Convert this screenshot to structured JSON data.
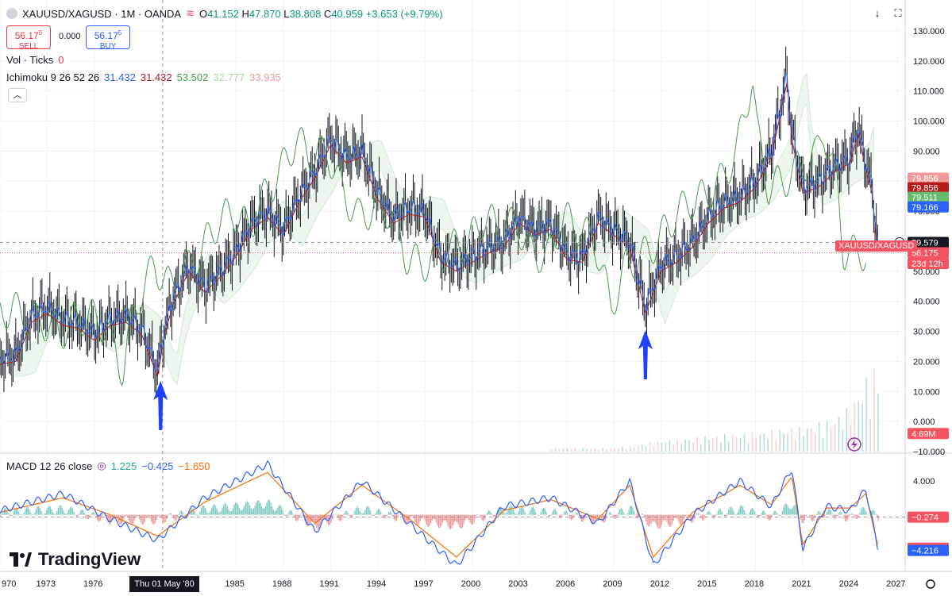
{
  "header": {
    "symbol": "XAUUSD/XAGUSD · 1M · OANDA",
    "open_label": "O",
    "open": "41.152",
    "high_label": "H",
    "high": "47.870",
    "low_label": "L",
    "low": "38.808",
    "close_label": "C",
    "close": "40.959",
    "change": "+3.653 (+9.79%)"
  },
  "trade": {
    "sell_price": "56.17",
    "sell_sup": "5",
    "sell_label": "SELL",
    "spread": "0.000",
    "buy_price": "56.17",
    "buy_sup": "5",
    "buy_label": "BUY"
  },
  "indicators": {
    "vol_label": "Vol · Ticks",
    "vol_value": "0",
    "ichimoku_label": "Ichimoku 9 26 52 26",
    "ichimoku_values": [
      "31.432",
      "31.432",
      "53.502",
      "32.777",
      "33.935"
    ],
    "ichimoku_colors": [
      "#2962ff",
      "#b71c1c",
      "#43a047",
      "#a5d6a7",
      "#ef9a9a"
    ],
    "macd_label": "MACD 12 26 close",
    "macd_values": [
      "1.225",
      "−0.425",
      "−1.650"
    ],
    "macd_colors": [
      "#26a69a",
      "#2962ff",
      "#ff6d00"
    ]
  },
  "price_axis": {
    "ticks": [
      "130.000",
      "120.000",
      "110.000",
      "100.000",
      "90.000",
      "80.000",
      "70.000",
      "60.000",
      "50.000",
      "40.000",
      "30.000",
      "20.000",
      "10.000",
      "0.000",
      "−10.000"
    ],
    "tags": [
      {
        "text": "79.856",
        "color": "#ef9a9a",
        "value": 81.0
      },
      {
        "text": "79.856",
        "color": "#b71c1c",
        "value": 77.8
      },
      {
        "text": "79.511",
        "color": "#66bb6a",
        "value": 74.6
      },
      {
        "text": "79.166",
        "color": "#2962ff",
        "value": 71.4
      },
      {
        "text": "59.579",
        "color": "#131722",
        "value": 59.579
      },
      {
        "text": "56.175",
        "color": "#f7525f",
        "value": 56.175
      },
      {
        "text": "23d 12h",
        "color": "#f7525f",
        "value": 52.6
      },
      {
        "text": "4.69M",
        "color": "#f7525f",
        "value": -4.0
      }
    ],
    "symbol_tag": "XAUUSD/XAGUSD"
  },
  "macd_axis": {
    "ticks": [
      "4.000"
    ],
    "tags": [
      {
        "text": "−0.274",
        "color": "#f7525f",
        "value": -0.274
      },
      {
        "text": "−3.942",
        "color": "#f7525f",
        "value": -3.942
      },
      {
        "text": "−4.216",
        "color": "#2962ff",
        "value": -4.216
      }
    ]
  },
  "time_axis": {
    "labels": [
      "970",
      "1973",
      "1976",
      "1985",
      "1988",
      "1991",
      "1994",
      "1997",
      "2000",
      "2003",
      "2006",
      "2009",
      "2012",
      "2015",
      "2018",
      "2021",
      "2024",
      "2027"
    ],
    "crosshair_date": "Thu 01 May '80"
  },
  "branding": {
    "logo_text": "TradingView"
  },
  "chart_data": {
    "type": "line",
    "title": "XAUUSD/XAGUSD · 1M · OANDA",
    "x_range": [
      1970,
      2027.5
    ],
    "ylim": [
      -10,
      135
    ],
    "series": [
      {
        "name": "XAUUSD/XAGUSD",
        "x": [
          1970,
          1971,
          1972,
          1973,
          1974,
          1975,
          1976,
          1977,
          1978,
          1979,
          1980,
          1980.5,
          1981,
          1982,
          1983,
          1984,
          1985,
          1986,
          1987,
          1988,
          1989,
          1990,
          1991,
          1992,
          1993,
          1994,
          1995,
          1996,
          1997,
          1998,
          1999,
          2000,
          2001,
          2002,
          2003,
          2004,
          2005,
          2006,
          2007,
          2008,
          2009,
          2010,
          2011,
          2012,
          2013,
          2014,
          2015,
          2016,
          2017,
          2018,
          2019,
          2020,
          2020.3,
          2021,
          2022,
          2023,
          2024,
          2024.5,
          2025,
          2025.4,
          2025.8
        ],
        "values": [
          21,
          22,
          35,
          38,
          34,
          33,
          29,
          34,
          35,
          31,
          17,
          32,
          41,
          52,
          45,
          50,
          57,
          66,
          70,
          64,
          75,
          83,
          94,
          88,
          90,
          76,
          68,
          71,
          70,
          55,
          52,
          55,
          58,
          60,
          68,
          64,
          66,
          56,
          55,
          68,
          64,
          60,
          38,
          52,
          55,
          60,
          68,
          73,
          75,
          80,
          90,
          115,
          96,
          78,
          80,
          85,
          88,
          98,
          86,
          78,
          56.175
        ]
      },
      {
        "name": "Volume",
        "x": [
          2009,
          2012,
          2015,
          2018,
          2021,
          2023,
          2024,
          2025,
          2025.4
        ],
        "values": [
          0.2,
          0.6,
          0.9,
          1.1,
          1.4,
          1.9,
          2.6,
          4.2,
          4.69
        ]
      }
    ],
    "macd": {
      "x": [
        1970,
        1974,
        1977,
        1980,
        1983,
        1987,
        1990,
        1993,
        1996,
        1999,
        2002,
        2005,
        2008,
        2010,
        2011.5,
        2014,
        2017,
        2019,
        2020.3,
        2021,
        2022.5,
        2024,
        2025,
        2025.8
      ],
      "macd": [
        0.5,
        2.5,
        -0.5,
        -3,
        2,
        6,
        -2,
        4,
        -1,
        -6,
        1,
        2,
        -1,
        4,
        -6,
        0,
        4,
        1,
        5.5,
        -4,
        1,
        0.5,
        3,
        -4.216
      ],
      "signal": [
        0.3,
        2,
        0,
        -2.5,
        1.5,
        5,
        -1,
        3.5,
        -0.5,
        -5,
        0.5,
        1.8,
        -0.5,
        3.5,
        -5,
        0.3,
        3.5,
        1.2,
        4.5,
        -3.5,
        0.8,
        0.8,
        2.5,
        -3.942
      ]
    }
  }
}
